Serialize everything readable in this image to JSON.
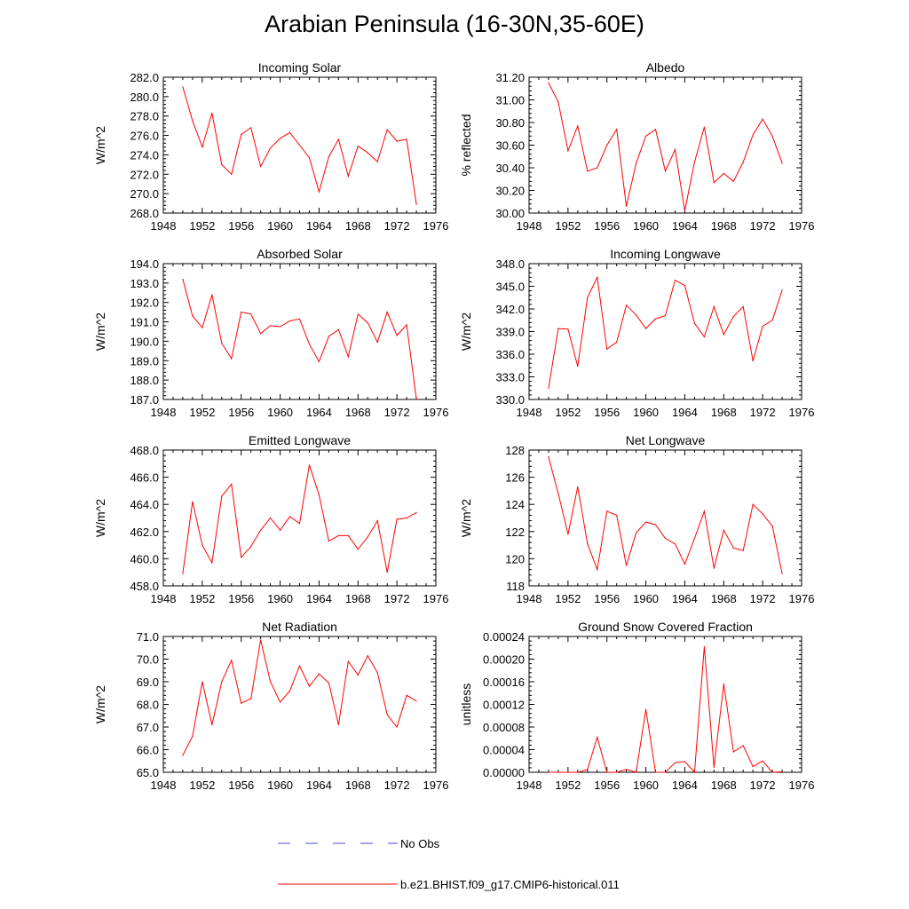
{
  "title": "Arabian Peninsula (16-30N,35-60E)",
  "legend": {
    "items": [
      {
        "label": "No Obs",
        "color": "#4a4ad0",
        "style": "dashed"
      },
      {
        "label": "b.e21.BHIST.f09_g17.CMIP6-historical.011",
        "color": "#ff0000",
        "style": "solid"
      }
    ],
    "placement": "bottom-center"
  },
  "chart_data": [
    {
      "type": "line",
      "title": "Incoming Solar",
      "xlabel": "",
      "ylabel": "W/m^2",
      "xlim": [
        1948,
        1976
      ],
      "ylim": [
        268,
        282
      ],
      "grid": false,
      "xticks": [
        "1948",
        "1952",
        "1956",
        "1960",
        "1964",
        "1968",
        "1972",
        "1976"
      ],
      "yticks": [
        "268.0",
        "270.0",
        "272.0",
        "274.0",
        "276.0",
        "278.0",
        "280.0",
        "282.0"
      ],
      "x": [
        1950,
        1951,
        1952,
        1953,
        1954,
        1955,
        1956,
        1957,
        1958,
        1959,
        1960,
        1961,
        1962,
        1963,
        1964,
        1965,
        1966,
        1967,
        1968,
        1969,
        1970,
        1971,
        1972,
        1973,
        1974
      ],
      "series": [
        {
          "values": [
            281.0,
            277.5,
            274.8,
            278.3,
            273.0,
            272.0,
            276.1,
            276.8,
            272.8,
            274.7,
            275.7,
            276.3,
            275.0,
            273.7,
            270.2,
            273.8,
            275.6,
            271.8,
            274.9,
            274.2,
            273.3,
            276.6,
            275.4,
            275.6,
            268.9
          ],
          "color": "#ff0000"
        }
      ]
    },
    {
      "type": "line",
      "title": "Albedo",
      "xlabel": "",
      "ylabel": "% reflected",
      "xlim": [
        1948,
        1976
      ],
      "ylim": [
        30.0,
        31.2
      ],
      "grid": false,
      "xticks": [
        "1948",
        "1952",
        "1956",
        "1960",
        "1964",
        "1968",
        "1972",
        "1976"
      ],
      "yticks": [
        "30.00",
        "30.20",
        "30.40",
        "30.60",
        "30.80",
        "31.00",
        "31.20"
      ],
      "x": [
        1950,
        1951,
        1952,
        1953,
        1954,
        1955,
        1956,
        1957,
        1958,
        1959,
        1960,
        1961,
        1962,
        1963,
        1964,
        1965,
        1966,
        1967,
        1968,
        1969,
        1970,
        1971,
        1972,
        1973,
        1974
      ],
      "series": [
        {
          "values": [
            31.15,
            30.98,
            30.55,
            30.77,
            30.37,
            30.4,
            30.6,
            30.74,
            30.06,
            30.44,
            30.68,
            30.74,
            30.37,
            30.56,
            30.02,
            30.45,
            30.76,
            30.27,
            30.35,
            30.28,
            30.45,
            30.69,
            30.83,
            30.68,
            30.44
          ],
          "color": "#ff0000"
        }
      ]
    },
    {
      "type": "line",
      "title": "Absorbed Solar",
      "xlabel": "",
      "ylabel": "W/m^2",
      "xlim": [
        1948,
        1976
      ],
      "ylim": [
        187,
        194
      ],
      "grid": false,
      "xticks": [
        "1948",
        "1952",
        "1956",
        "1960",
        "1964",
        "1968",
        "1972",
        "1976"
      ],
      "yticks": [
        "187.0",
        "188.0",
        "189.0",
        "190.0",
        "191.0",
        "192.0",
        "193.0",
        "194.0"
      ],
      "x": [
        1950,
        1951,
        1952,
        1953,
        1954,
        1955,
        1956,
        1957,
        1958,
        1959,
        1960,
        1961,
        1962,
        1963,
        1964,
        1965,
        1966,
        1967,
        1968,
        1969,
        1970,
        1971,
        1972,
        1973,
        1974
      ],
      "series": [
        {
          "values": [
            193.2,
            191.3,
            190.7,
            192.4,
            189.9,
            189.1,
            191.5,
            191.4,
            190.4,
            190.8,
            190.75,
            191.05,
            191.15,
            189.85,
            188.95,
            190.25,
            190.6,
            189.2,
            191.4,
            190.95,
            189.95,
            191.5,
            190.3,
            190.85,
            187.0
          ],
          "color": "#ff0000"
        }
      ]
    },
    {
      "type": "line",
      "title": "Incoming Longwave",
      "xlabel": "",
      "ylabel": "W/m^2",
      "xlim": [
        1948,
        1976
      ],
      "ylim": [
        330,
        348
      ],
      "grid": false,
      "xticks": [
        "1948",
        "1952",
        "1956",
        "1960",
        "1964",
        "1968",
        "1972",
        "1976"
      ],
      "yticks": [
        "330.0",
        "333.0",
        "336.0",
        "339.0",
        "342.0",
        "345.0",
        "348.0"
      ],
      "x": [
        1950,
        1951,
        1952,
        1953,
        1954,
        1955,
        1956,
        1957,
        1958,
        1959,
        1960,
        1961,
        1962,
        1963,
        1964,
        1965,
        1966,
        1967,
        1968,
        1969,
        1970,
        1971,
        1972,
        1973,
        1974
      ],
      "series": [
        {
          "values": [
            331.5,
            339.4,
            339.3,
            334.4,
            343.5,
            346.2,
            336.7,
            337.6,
            342.5,
            341.2,
            339.4,
            340.7,
            341.1,
            345.8,
            345.1,
            340.1,
            338.3,
            342.3,
            338.6,
            341.0,
            342.3,
            335.1,
            339.7,
            340.5,
            344.5
          ],
          "color": "#ff0000"
        }
      ]
    },
    {
      "type": "line",
      "title": "Emitted Longwave",
      "xlabel": "",
      "ylabel": "W/m^2",
      "xlim": [
        1948,
        1976
      ],
      "ylim": [
        458,
        468
      ],
      "grid": false,
      "xticks": [
        "1948",
        "1952",
        "1956",
        "1960",
        "1964",
        "1968",
        "1972",
        "1976"
      ],
      "yticks": [
        "458.0",
        "460.0",
        "462.0",
        "464.0",
        "466.0",
        "468.0"
      ],
      "x": [
        1950,
        1951,
        1952,
        1953,
        1954,
        1955,
        1956,
        1957,
        1958,
        1959,
        1960,
        1961,
        1962,
        1963,
        1964,
        1965,
        1966,
        1967,
        1968,
        1969,
        1970,
        1971,
        1972,
        1973,
        1974
      ],
      "series": [
        {
          "values": [
            458.9,
            464.2,
            461.0,
            459.7,
            464.6,
            465.5,
            460.1,
            460.9,
            462.1,
            463.0,
            462.1,
            463.1,
            462.6,
            466.9,
            464.7,
            461.3,
            461.7,
            461.7,
            460.7,
            461.6,
            462.8,
            459.0,
            462.9,
            463.0,
            463.4
          ],
          "color": "#ff0000"
        }
      ]
    },
    {
      "type": "line",
      "title": "Net Longwave",
      "xlabel": "",
      "ylabel": "W/m^2",
      "xlim": [
        1948,
        1976
      ],
      "ylim": [
        118,
        128
      ],
      "grid": false,
      "xticks": [
        "1948",
        "1952",
        "1956",
        "1960",
        "1964",
        "1968",
        "1972",
        "1976"
      ],
      "yticks": [
        "118",
        "120",
        "122",
        "124",
        "126",
        "128"
      ],
      "x": [
        1950,
        1951,
        1952,
        1953,
        1954,
        1955,
        1956,
        1957,
        1958,
        1959,
        1960,
        1961,
        1962,
        1963,
        1964,
        1965,
        1966,
        1967,
        1968,
        1969,
        1970,
        1971,
        1972,
        1973,
        1974
      ],
      "series": [
        {
          "values": [
            127.5,
            124.8,
            121.8,
            125.3,
            121.1,
            119.2,
            123.5,
            123.2,
            119.5,
            121.9,
            122.7,
            122.5,
            121.5,
            121.1,
            119.6,
            121.5,
            123.5,
            119.3,
            122.1,
            120.8,
            120.6,
            124.0,
            123.3,
            122.4,
            118.9
          ],
          "color": "#ff0000"
        }
      ]
    },
    {
      "type": "line",
      "title": "Net Radiation",
      "xlabel": "",
      "ylabel": "W/m^2",
      "xlim": [
        1948,
        1976
      ],
      "ylim": [
        65,
        71
      ],
      "grid": false,
      "xticks": [
        "1948",
        "1952",
        "1956",
        "1960",
        "1964",
        "1968",
        "1972",
        "1976"
      ],
      "yticks": [
        "65.0",
        "66.0",
        "67.0",
        "68.0",
        "69.0",
        "70.0",
        "71.0"
      ],
      "x": [
        1950,
        1951,
        1952,
        1953,
        1954,
        1955,
        1956,
        1957,
        1958,
        1959,
        1960,
        1961,
        1962,
        1963,
        1964,
        1965,
        1966,
        1967,
        1968,
        1969,
        1970,
        1971,
        1972,
        1973,
        1974
      ],
      "series": [
        {
          "values": [
            65.75,
            66.6,
            69.0,
            67.1,
            69.0,
            69.95,
            68.05,
            68.25,
            70.85,
            69.0,
            68.1,
            68.6,
            69.7,
            68.8,
            69.35,
            68.95,
            67.1,
            69.9,
            69.3,
            70.15,
            69.4,
            67.55,
            67.0,
            68.4,
            68.15
          ],
          "color": "#ff0000"
        }
      ]
    },
    {
      "type": "line",
      "title": "Ground Snow Covered Fraction",
      "xlabel": "",
      "ylabel": "unitless",
      "xlim": [
        1948,
        1976
      ],
      "ylim": [
        0,
        0.00024
      ],
      "grid": false,
      "xticks": [
        "1948",
        "1952",
        "1956",
        "1960",
        "1964",
        "1968",
        "1972",
        "1976"
      ],
      "yticks": [
        "0.00000",
        "0.00004",
        "0.00008",
        "0.00012",
        "0.00016",
        "0.00020",
        "0.00024"
      ],
      "x": [
        1950,
        1951,
        1952,
        1953,
        1954,
        1955,
        1956,
        1957,
        1958,
        1959,
        1960,
        1961,
        1962,
        1963,
        1964,
        1965,
        1966,
        1967,
        1968,
        1969,
        1970,
        1971,
        1972,
        1973,
        1974
      ],
      "series": [
        {
          "values": [
            0,
            0,
            0,
            0,
            5e-06,
            6.2e-05,
            0,
            0,
            5e-06,
            0,
            0.000111,
            0,
            0,
            1.7e-05,
            1.9e-05,
            0,
            0.000222,
            9e-06,
            0.000156,
            3.6e-05,
            4.7e-05,
            1e-05,
            2e-05,
            0,
            1e-06
          ],
          "color": "#ff0000"
        }
      ]
    }
  ]
}
